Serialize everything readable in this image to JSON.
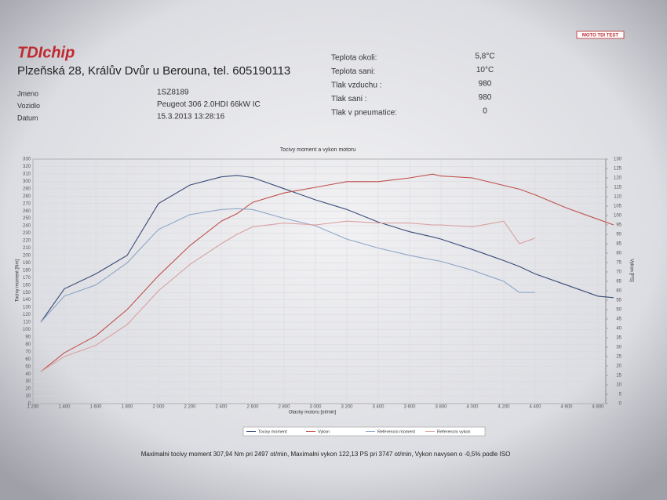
{
  "header": {
    "logo": "TDIchip",
    "logo_right": "MOTO TDI TEST",
    "address": "Plzeňská 28, Králův Dvůr u Berouna, tel. 605190113",
    "fields": [
      {
        "label": "Jmeno",
        "value": "1SZ8189"
      },
      {
        "label": "Vozidlo",
        "value": "Peugeot 306 2.0HDI 66kW IC"
      },
      {
        "label": "Datum",
        "value": "15.3.2013 13:28:16"
      }
    ],
    "conditions": [
      {
        "label": "Teplota okoli:",
        "value": "5,8°C"
      },
      {
        "label": "Teplota sani:",
        "value": "10°C"
      },
      {
        "label": "Tlak vzduchu :",
        "value": "980"
      },
      {
        "label": "Tlak sani :",
        "value": "980"
      },
      {
        "label": "Tlak v pneumatice:",
        "value": "0"
      }
    ]
  },
  "chart_data": {
    "type": "line",
    "title": "Tocivy moment a vykon motoru",
    "x_label": "Otacky motoru [ot/min]",
    "y_label": "Tocivy moment [Nm]",
    "y2_label": "Vykon [PS]",
    "x": [
      1250,
      1400,
      1600,
      1800,
      2000,
      2200,
      2400,
      2500,
      2600,
      2800,
      3000,
      3200,
      3400,
      3600,
      3747,
      3800,
      4000,
      4200,
      4300,
      4400,
      4600,
      4800,
      4900
    ],
    "series": [
      {
        "name": "Tocivy moment",
        "color": "#3a4a78",
        "axis": "y",
        "values": [
          110,
          155,
          175,
          200,
          270,
          295,
          306,
          308,
          305,
          290,
          275,
          262,
          245,
          232,
          225,
          222,
          208,
          193,
          185,
          175,
          160,
          145,
          143
        ]
      },
      {
        "name": "Vykon",
        "color": "#c0504d",
        "axis": "y2",
        "values": [
          17,
          27,
          36,
          50,
          68,
          84,
          97,
          101,
          107,
          112,
          115,
          118,
          118,
          120,
          122,
          121,
          120,
          116,
          114,
          111,
          104,
          98,
          95
        ]
      },
      {
        "name": "Referencni moment",
        "color": "#8fa6c8",
        "axis": "y",
        "values": [
          110,
          145,
          160,
          190,
          235,
          255,
          262,
          263,
          262,
          250,
          240,
          222,
          210,
          200,
          194,
          192,
          180,
          165,
          150,
          150,
          null,
          null,
          null
        ]
      },
      {
        "name": "Referencni vykon",
        "color": "#d9a0a0",
        "axis": "y2",
        "values": [
          17,
          25,
          31,
          42,
          60,
          74,
          85,
          90,
          94,
          96,
          95,
          97,
          96,
          96,
          95,
          95,
          94,
          97,
          85,
          88,
          null,
          null,
          null
        ]
      }
    ],
    "xlim": [
      1200,
      4850
    ],
    "xticks": [
      {
        "value": 1200,
        "label": "1 200"
      },
      {
        "value": 1400,
        "label": "1 400"
      },
      {
        "value": 1600,
        "label": "1 600"
      },
      {
        "value": 1800,
        "label": "1 800"
      },
      {
        "value": 2000,
        "label": "2 000"
      },
      {
        "value": 2200,
        "label": "2 200"
      },
      {
        "value": 2400,
        "label": "2 400"
      },
      {
        "value": 2600,
        "label": "2 600"
      },
      {
        "value": 2800,
        "label": "2 800"
      },
      {
        "value": 3000,
        "label": "3 000"
      },
      {
        "value": 3200,
        "label": "3 200"
      },
      {
        "value": 3400,
        "label": "3 400"
      },
      {
        "value": 3600,
        "label": "3 600"
      },
      {
        "value": 3800,
        "label": "3 800"
      },
      {
        "value": 4000,
        "label": "4 000"
      },
      {
        "value": 4200,
        "label": "4 200"
      },
      {
        "value": 4400,
        "label": "4 400"
      },
      {
        "value": 4600,
        "label": "4 600"
      },
      {
        "value": 4800,
        "label": "4 800"
      }
    ],
    "ylim": [
      0,
      330
    ],
    "yticks": [
      0,
      10,
      20,
      30,
      40,
      50,
      60,
      70,
      80,
      90,
      100,
      110,
      120,
      130,
      140,
      150,
      160,
      170,
      180,
      190,
      200,
      210,
      220,
      230,
      240,
      250,
      260,
      270,
      280,
      290,
      300,
      310,
      320,
      330
    ],
    "y2lim": [
      0,
      130
    ],
    "y2ticks": [
      0,
      5,
      10,
      15,
      20,
      25,
      30,
      35,
      40,
      45,
      50,
      55,
      60,
      65,
      70,
      75,
      80,
      85,
      90,
      95,
      100,
      105,
      110,
      115,
      120,
      125,
      130
    ],
    "grid": true,
    "footer": "Maximalni tocivy moment 307,94 Nm pri 2497 ot/min,  Maximalni vykon 122,13 PS pri 3747 ot/min,  Vykon navysen o -0,5% podle ISO"
  }
}
